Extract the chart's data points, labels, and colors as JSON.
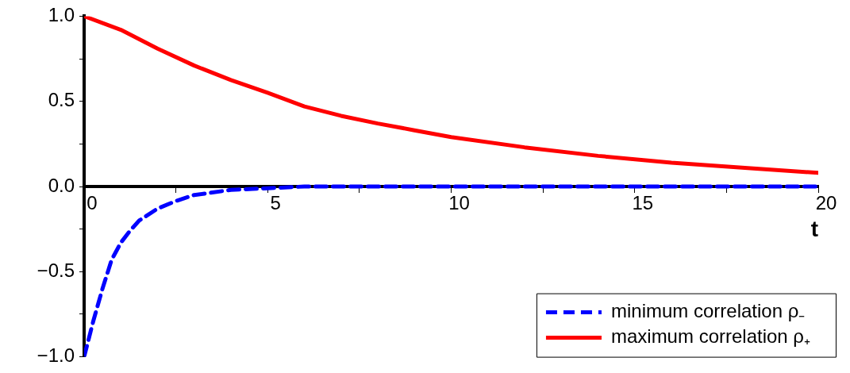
{
  "chart_data": {
    "type": "line",
    "xlabel": "t",
    "xlim": [
      0,
      20
    ],
    "ylim": [
      -1,
      1
    ],
    "xticks": [
      0,
      {
        "value": 2.5,
        "label": null
      },
      5,
      {
        "value": 7.5,
        "label": null
      },
      10,
      {
        "value": 12.5,
        "label": null
      },
      15,
      {
        "value": 17.5,
        "label": null
      },
      20
    ],
    "yticks": [
      {
        "value": -1,
        "label": "−1.0"
      },
      {
        "value": -0.75,
        "label": null
      },
      {
        "value": -0.5,
        "label": "−0.5"
      },
      {
        "value": -0.25,
        "label": null
      },
      {
        "value": 0,
        "label": "0.0"
      },
      {
        "value": 0.25,
        "label": null
      },
      {
        "value": 0.5,
        "label": "0.5"
      },
      {
        "value": 0.75,
        "label": null
      },
      {
        "value": 1,
        "label": "1.0"
      }
    ],
    "grid": false,
    "legend": "bottom right",
    "marker": "none",
    "series": [
      {
        "name": "minimum correlation ρ₋",
        "color": "#0000ff",
        "line_style": "dashed",
        "x": [
          0,
          0.25,
          0.5,
          0.75,
          1,
          1.25,
          1.5,
          2,
          2.5,
          3,
          4,
          5,
          6,
          8,
          10,
          12,
          14,
          16,
          18,
          20
        ],
        "values": [
          -1,
          -0.79,
          -0.6,
          -0.43,
          -0.33,
          -0.26,
          -0.2,
          -0.13,
          -0.085,
          -0.05,
          -0.02,
          -0.01,
          0,
          0,
          0,
          0,
          0,
          0,
          0,
          0
        ]
      },
      {
        "name": "maximum correlation ρ₊",
        "color": "#ff0000",
        "line_style": "solid",
        "x": [
          0,
          1,
          2,
          3,
          4,
          5,
          6,
          7,
          8,
          9,
          10,
          12,
          14,
          16,
          18,
          20
        ],
        "values": [
          1,
          0.92,
          0.81,
          0.71,
          0.625,
          0.55,
          0.47,
          0.415,
          0.37,
          0.33,
          0.29,
          0.23,
          0.18,
          0.14,
          0.11,
          0.08
        ]
      }
    ]
  }
}
